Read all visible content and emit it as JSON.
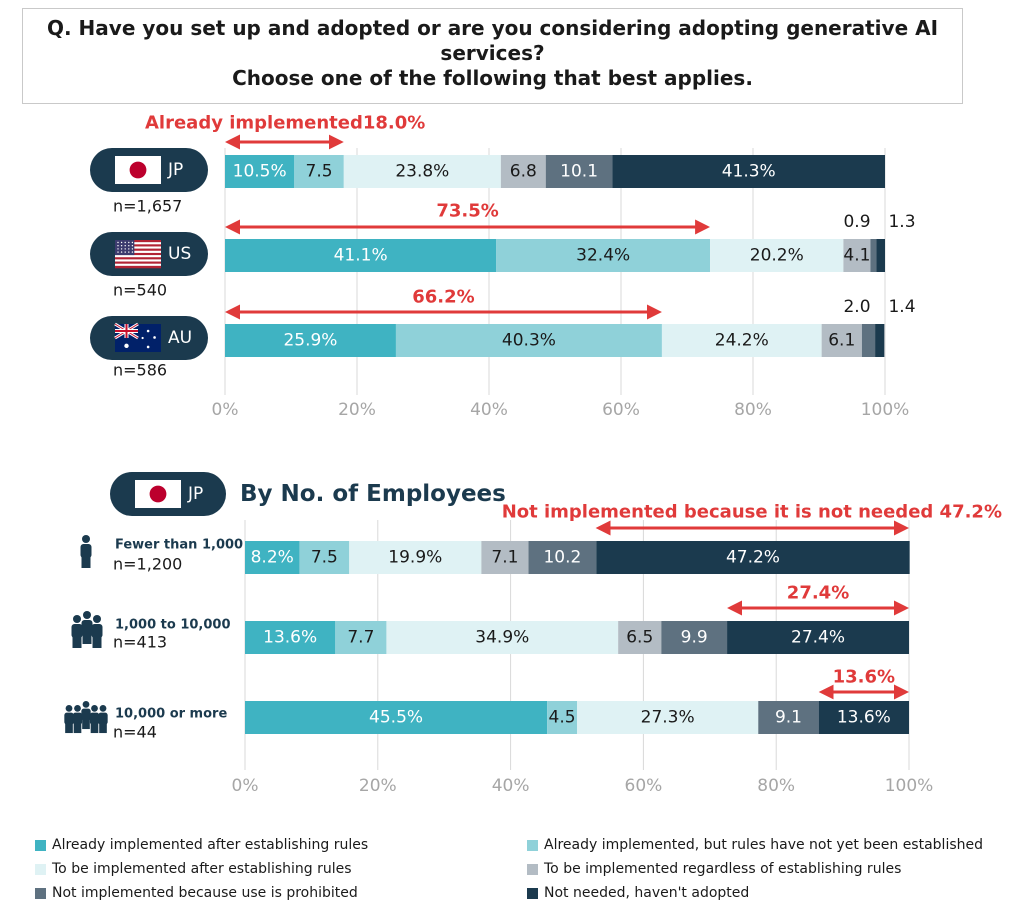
{
  "question": {
    "line1": "Q. Have you set up and adopted or are you considering adopting generative AI",
    "line2": "services?",
    "line3": "Choose one of the following that best applies."
  },
  "colors": {
    "cat1": "#3fb3c2",
    "cat2": "#8fd1d9",
    "cat3": "#dff2f4",
    "cat4": "#b3bcc4",
    "cat5": "#5e7180",
    "cat6": "#1b3a4e",
    "annotation": "#e03a3a",
    "pill": "#1b3a4e",
    "grid": "#d9d9d9",
    "tick": "#a6a6a6",
    "flag_jp_red": "#bc002d"
  },
  "legend": [
    {
      "key": "cat1",
      "label": "Already implemented after establishing rules"
    },
    {
      "key": "cat2",
      "label": "Already implemented, but rules have not yet been established"
    },
    {
      "key": "cat3",
      "label": "To be implemented after establishing rules"
    },
    {
      "key": "cat4",
      "label": "To be implemented regardless of establishing rules"
    },
    {
      "key": "cat5",
      "label": " Not implemented because use is prohibited"
    },
    {
      "key": "cat6",
      "label": "Not needed, haven't adopted"
    }
  ],
  "section2_title": "By No. of Employees",
  "chart_data": [
    {
      "type": "bar",
      "orientation": "horizontal",
      "stacked": true,
      "xlim": [
        0,
        100
      ],
      "xticks": [
        "0%",
        "20%",
        "40%",
        "60%",
        "80%",
        "100%"
      ],
      "grid": true,
      "rows": [
        {
          "pill_label": "JP",
          "flag": "jp-flag",
          "n_label": "n=1,657",
          "values": [
            10.5,
            7.5,
            23.8,
            6.8,
            10.1,
            41.3
          ],
          "value_labels": [
            "10.5%",
            "7.5",
            "23.8%",
            "6.8",
            "10.1",
            "41.3%"
          ],
          "annotation": {
            "text": "Already implemented18.0%",
            "from": 0,
            "to": 18.0
          }
        },
        {
          "pill_label": "US",
          "flag": "us-flag",
          "n_label": "n=540",
          "values": [
            41.1,
            32.4,
            20.2,
            4.1,
            0.9,
            1.3
          ],
          "value_labels": [
            "41.1%",
            "32.4%",
            "20.2%",
            "4.1",
            "",
            ""
          ],
          "outside_labels": [
            "0.9",
            "1.3"
          ],
          "annotation": {
            "text": "73.5%",
            "from": 0,
            "to": 73.5
          }
        },
        {
          "pill_label": "AU",
          "flag": "au-flag",
          "n_label": "n=586",
          "values": [
            25.9,
            40.3,
            24.2,
            6.1,
            2.0,
            1.4
          ],
          "value_labels": [
            "25.9%",
            "40.3%",
            "24.2%",
            "6.1",
            "",
            ""
          ],
          "outside_labels": [
            "2.0",
            "1.4"
          ],
          "annotation": {
            "text": "66.2%",
            "from": 0,
            "to": 66.2
          }
        }
      ]
    },
    {
      "type": "bar",
      "orientation": "horizontal",
      "stacked": true,
      "title": "By No. of Employees",
      "pill_label": "JP",
      "xlim": [
        0,
        100
      ],
      "xticks": [
        "0%",
        "20%",
        "40%",
        "60%",
        "80%",
        "100%"
      ],
      "grid": true,
      "rows": [
        {
          "label": "Fewer than 1,000",
          "n_label": "n=1,200",
          "icon": "person-icon",
          "values": [
            8.2,
            7.5,
            19.9,
            7.1,
            10.2,
            47.2
          ],
          "value_labels": [
            "8.2%",
            "7.5",
            "19.9%",
            "7.1",
            "10.2",
            "47.2%"
          ],
          "annotation": {
            "text": "Not  implemented because it is not needed 47.2%",
            "from": 52.8,
            "to": 100
          }
        },
        {
          "label": "1,000 to 10,000",
          "n_label": "n=413",
          "icon": "group-icon",
          "values": [
            13.6,
            7.7,
            34.9,
            6.5,
            9.9,
            27.4
          ],
          "value_labels": [
            "13.6%",
            "7.7",
            "34.9%",
            "6.5",
            "9.9",
            "27.4%"
          ],
          "annotation": {
            "text": "27.4%",
            "from": 72.6,
            "to": 100
          }
        },
        {
          "label": "10,000 or more",
          "n_label": "n=44",
          "icon": "large-group-icon",
          "values": [
            45.5,
            4.5,
            27.3,
            0,
            9.1,
            13.6
          ],
          "value_labels": [
            "45.5%",
            "4.5",
            "27.3%",
            "",
            "9.1",
            "13.6%"
          ],
          "annotation": {
            "text": "13.6%",
            "from": 86.4,
            "to": 100
          }
        }
      ]
    }
  ]
}
